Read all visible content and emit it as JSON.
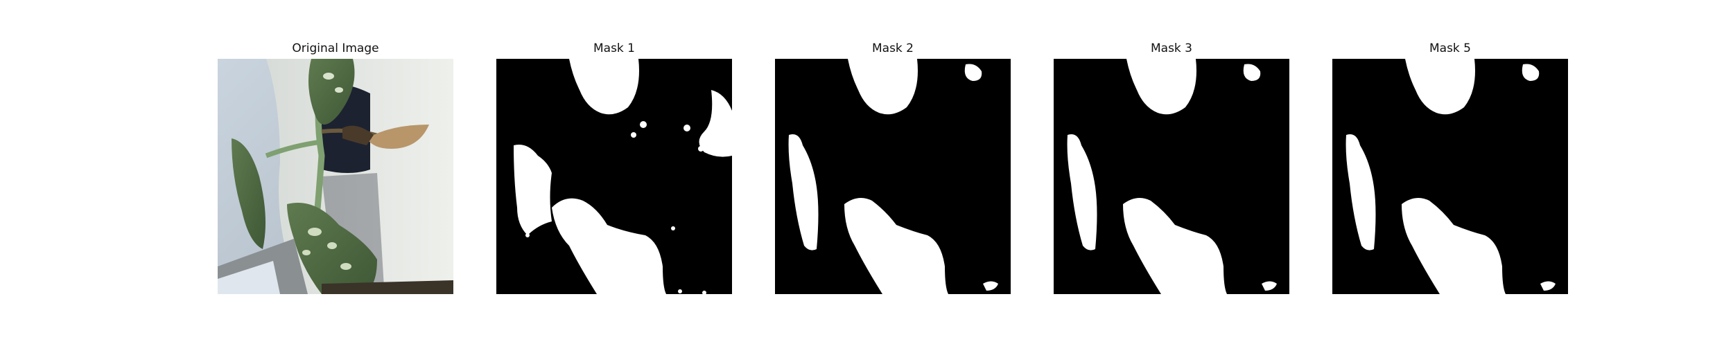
{
  "panels": [
    {
      "title": "Original Image",
      "kind": "photo"
    },
    {
      "title": "Mask 1",
      "kind": "mask",
      "variant": "mask1"
    },
    {
      "title": "Mask 2",
      "kind": "mask",
      "variant": "clean"
    },
    {
      "title": "Mask 3",
      "kind": "mask",
      "variant": "clean"
    },
    {
      "title": "Mask 5",
      "kind": "mask",
      "variant": "clean"
    }
  ],
  "colors": {
    "background": "#ffffff",
    "mask_background": "#000000",
    "mask_foreground": "#ffffff"
  }
}
